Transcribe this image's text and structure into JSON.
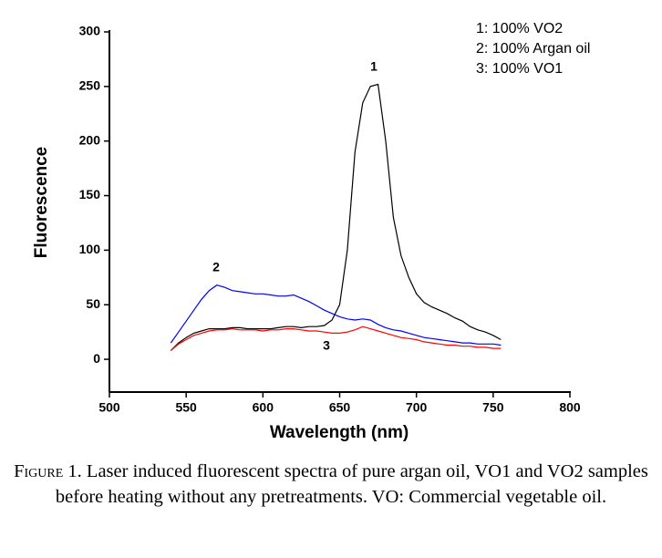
{
  "chart_data": {
    "type": "line",
    "x": [
      540,
      545,
      550,
      555,
      560,
      565,
      570,
      575,
      580,
      585,
      590,
      595,
      600,
      605,
      610,
      615,
      620,
      625,
      630,
      635,
      640,
      645,
      650,
      655,
      660,
      665,
      670,
      675,
      680,
      685,
      690,
      695,
      700,
      705,
      710,
      715,
      720,
      725,
      730,
      735,
      740,
      745,
      750,
      755
    ],
    "series": [
      {
        "name": "1: 100% VO2",
        "color": "#000000",
        "values": [
          8,
          15,
          20,
          24,
          26,
          28,
          28,
          28,
          29,
          29,
          28,
          28,
          28,
          28,
          29,
          30,
          30,
          29,
          30,
          30,
          31,
          36,
          50,
          100,
          190,
          235,
          250,
          252,
          200,
          130,
          95,
          75,
          60,
          52,
          48,
          45,
          42,
          38,
          35,
          30,
          27,
          25,
          22,
          18
        ]
      },
      {
        "name": "2: 100% Argan oil",
        "color": "#0000ff",
        "values": [
          15,
          25,
          35,
          45,
          55,
          63,
          68,
          66,
          63,
          62,
          61,
          60,
          60,
          59,
          58,
          58,
          59,
          56,
          53,
          49,
          45,
          42,
          39,
          37,
          36,
          37,
          36,
          32,
          29,
          27,
          26,
          24,
          22,
          20,
          19,
          18,
          17,
          16,
          15,
          15,
          14,
          14,
          14,
          13
        ]
      },
      {
        "name": "3: 100% VO1",
        "color": "#ff0000",
        "values": [
          8,
          14,
          18,
          22,
          24,
          26,
          27,
          27,
          28,
          27,
          27,
          27,
          26,
          27,
          27,
          28,
          28,
          27,
          26,
          26,
          25,
          24,
          24,
          25,
          27,
          30,
          28,
          26,
          24,
          22,
          20,
          19,
          18,
          16,
          15,
          14,
          13,
          13,
          12,
          12,
          11,
          11,
          10,
          10
        ]
      }
    ],
    "xlabel": "Wavelength (nm)",
    "ylabel": "Fluorescence",
    "xlim": [
      500,
      800
    ],
    "xticks": [
      500,
      550,
      600,
      650,
      700,
      750,
      800
    ],
    "ylim": [
      -30,
      300
    ],
    "yticks": [
      0,
      50,
      100,
      150,
      200,
      250,
      300
    ],
    "annotations": [
      "1",
      "2",
      "3"
    ],
    "grid": false
  },
  "caption": {
    "label": "Figure 1.",
    "text": "Laser induced fluorescent spectra of pure argan oil, VO1 and VO2 samples before heating without any pretreatments. VO: Commercial vegetable oil."
  }
}
